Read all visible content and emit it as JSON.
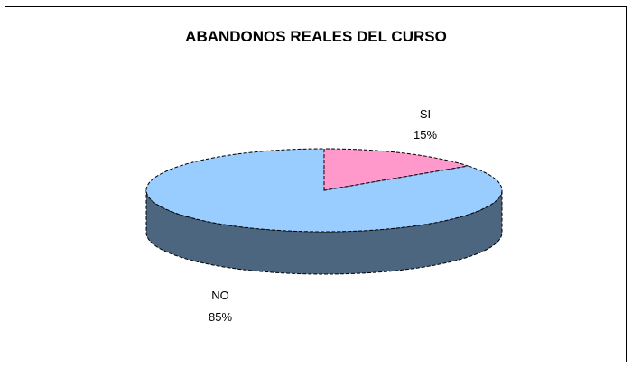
{
  "chart_data": {
    "type": "pie",
    "style": "3d",
    "title": "ABANDONOS REALES DEL CURSO",
    "slices": [
      {
        "label": "SI",
        "value": 15,
        "value_label": "15%",
        "color": "#FF99CC"
      },
      {
        "label": "NO",
        "value": 85,
        "value_label": "85%",
        "color": "#99CCFF",
        "side_color": "#4D6680"
      }
    ],
    "legend": "none"
  }
}
